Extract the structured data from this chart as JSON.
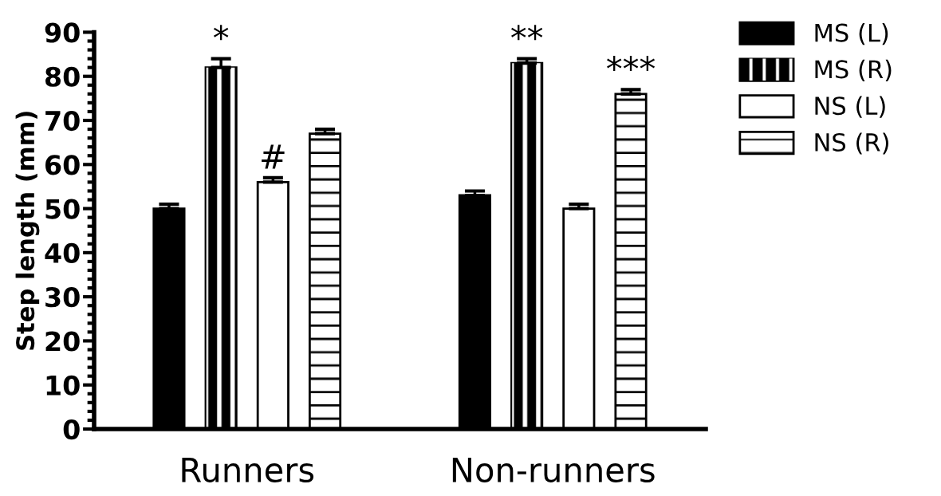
{
  "chart_data": {
    "type": "bar",
    "ylabel": "Step length (mm)",
    "categories": [
      "Runners",
      "Non-runners"
    ],
    "series": [
      {
        "name": "MS (L)",
        "color": "#000000",
        "values": [
          50,
          53
        ],
        "errors": [
          [
            50,
            51
          ],
          [
            53,
            54
          ]
        ]
      },
      {
        "name": "MS (R)",
        "color": "#000000",
        "values": [
          82,
          83
        ],
        "errors": [
          [
            82,
            84
          ],
          [
            83,
            84
          ]
        ]
      },
      {
        "name": "NS (L)",
        "color": "#ffffff",
        "values": [
          56,
          50
        ],
        "errors": [
          [
            56,
            57
          ],
          [
            50,
            51
          ]
        ]
      },
      {
        "name": "NS (R)",
        "color": "#ffffff",
        "values": [
          67,
          76
        ],
        "errors": [
          [
            67,
            68
          ],
          [
            76,
            77
          ]
        ]
      }
    ],
    "ylim": [
      0,
      90
    ],
    "yticks": [
      0,
      10,
      20,
      30,
      40,
      50,
      60,
      70,
      80,
      90
    ],
    "annotations": [
      "*",
      "#",
      "**",
      "***"
    ],
    "legend": "right",
    "grid": false
  }
}
